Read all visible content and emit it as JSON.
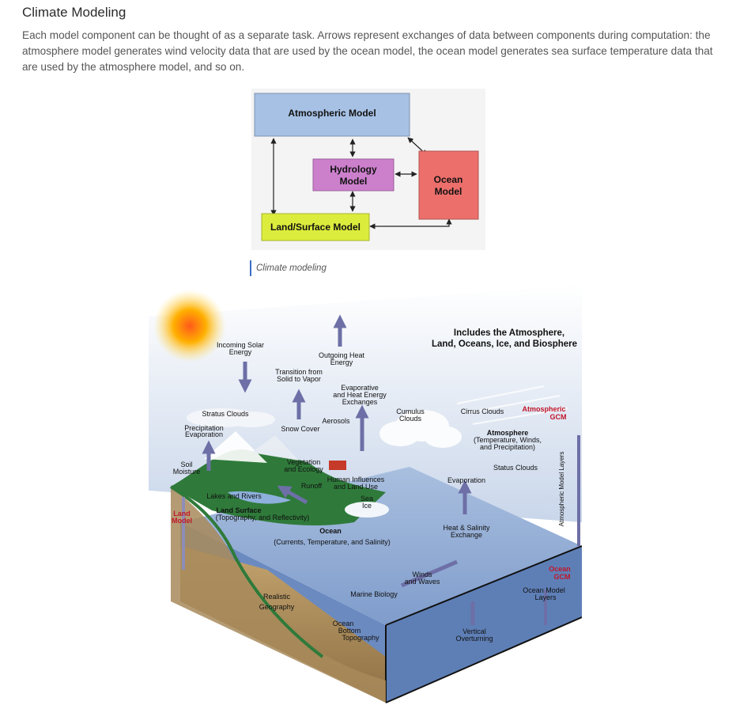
{
  "page": {
    "title": "Climate Modeling",
    "description": "Each model component can be thought of as a separate task. Arrows represent exchanges of data between components during computation: the atmosphere model generates wind velocity data that are used by the ocean model, the ocean model generates sea surface temperature data that are used by the atmosphere model, and so on."
  },
  "model_diagram": {
    "atmospheric": "Atmospheric Model",
    "hydrology_l1": "Hydrology",
    "hydrology_l2": "Model",
    "ocean_l1": "Ocean",
    "ocean_l2": "Model",
    "land": "Land/Surface Model",
    "colors": {
      "atmospheric": "#a6c1e4",
      "hydrology": "#cc80cc",
      "ocean": "#ec6f6b",
      "land": "#dcec3c"
    }
  },
  "caption": "Climate modeling",
  "illustration": {
    "header_l1": "Includes the Atmosphere,",
    "header_l2": "Land, Oceans, Ice, and Biosphere",
    "incoming_l1": "Incoming Solar",
    "incoming_l2": "Energy",
    "outgoing_l1": "Outgoing Heat",
    "outgoing_l2": "Energy",
    "transition_l1": "Transition from",
    "transition_l2": "Solid to Vapor",
    "evap_l1": "Evaporative",
    "evap_l2": "and Heat Energy",
    "evap_l3": "Exchanges",
    "stratus": "Stratus Clouds",
    "aerosols": "Aerosols",
    "cumulus_l1": "Cumulus",
    "cumulus_l2": "Clouds",
    "cirrus": "Cirrus Clouds",
    "atm_gcm_l1": "Atmospheric",
    "atm_gcm_l2": "GCM",
    "precip_l1": "Precipitation",
    "precip_l2": "Evaporation",
    "snow": "Snow Cover",
    "atmosphere_l1": "Atmosphere",
    "atmosphere_l2": "(Temperature, Winds,",
    "atmosphere_l3": "and Precipitation)",
    "soil_l1": "Soil",
    "soil_l2": "Moisture",
    "vegetation_l1": "Vegetation",
    "vegetation_l2": "and Ecology",
    "status_clouds": "Status Clouds",
    "human_l1": "Human Influences",
    "human_l2": "and Land Use",
    "runoff": "Runoff",
    "evaporation": "Evaporation",
    "lakes": "Lakes and Rivers",
    "sea_ice_l1": "Sea",
    "sea_ice_l2": "Ice",
    "land_model_l1": "Land",
    "land_model_l2": "Model",
    "land_surface_l1": "Land Surface",
    "land_surface_l2": "(Topography, and Reflectivity)",
    "ocean_l1": "Ocean",
    "ocean_l2": "(Currents, Temperature, and Salinity)",
    "heat_l1": "Heat & Salinity",
    "heat_l2": "Exchange",
    "atm_layers": "Atmospheric Model Layers",
    "ocean_gcm_l1": "Ocean",
    "ocean_gcm_l2": "GCM",
    "winds_l1": "Winds",
    "winds_l2": "and Waves",
    "ocean_layers_l1": "Ocean Model",
    "ocean_layers_l2": "Layers",
    "realistic_l1": "Realistic",
    "realistic_l2": "Geography",
    "marine": "Marine Biology",
    "bottom_l1": "Ocean",
    "bottom_l2": "Bottom",
    "bottom_l3": "Topography",
    "vertical_l1": "Vertical",
    "vertical_l2": "Overturning"
  }
}
